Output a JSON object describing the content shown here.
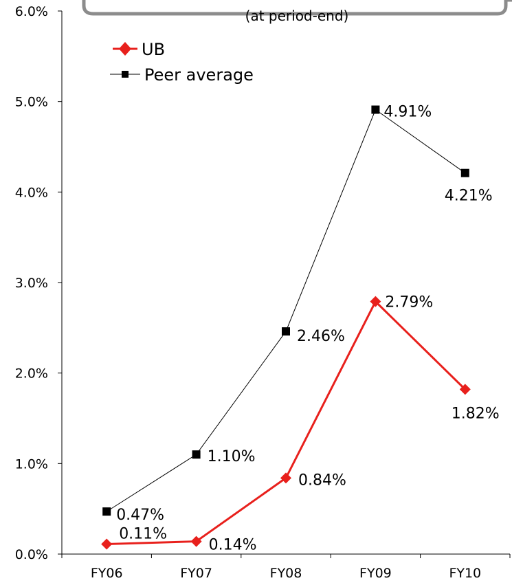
{
  "chart_data": {
    "type": "line",
    "subtitle": "(at period-end)",
    "categories": [
      "FY06",
      "FY07",
      "FY08",
      "FY09",
      "FY10"
    ],
    "ylim": [
      0,
      6
    ],
    "yticks": [
      "0.0%",
      "1.0%",
      "2.0%",
      "3.0%",
      "4.0%",
      "5.0%",
      "6.0%"
    ],
    "grid": false,
    "legend_position": "top-left",
    "series": [
      {
        "name": "UB",
        "values": [
          0.11,
          0.14,
          0.84,
          2.79,
          1.82
        ],
        "labels": [
          "0.11%",
          "0.14%",
          "0.84%",
          "2.79%",
          "1.82%"
        ],
        "color": "#e8201c",
        "marker": "diamond"
      },
      {
        "name": "Peer average",
        "values": [
          0.47,
          1.1,
          2.46,
          4.91,
          4.21
        ],
        "labels": [
          "0.47%",
          "1.10%",
          "2.46%",
          "4.91%",
          "4.21%"
        ],
        "color": "#000000",
        "marker": "square"
      }
    ]
  }
}
